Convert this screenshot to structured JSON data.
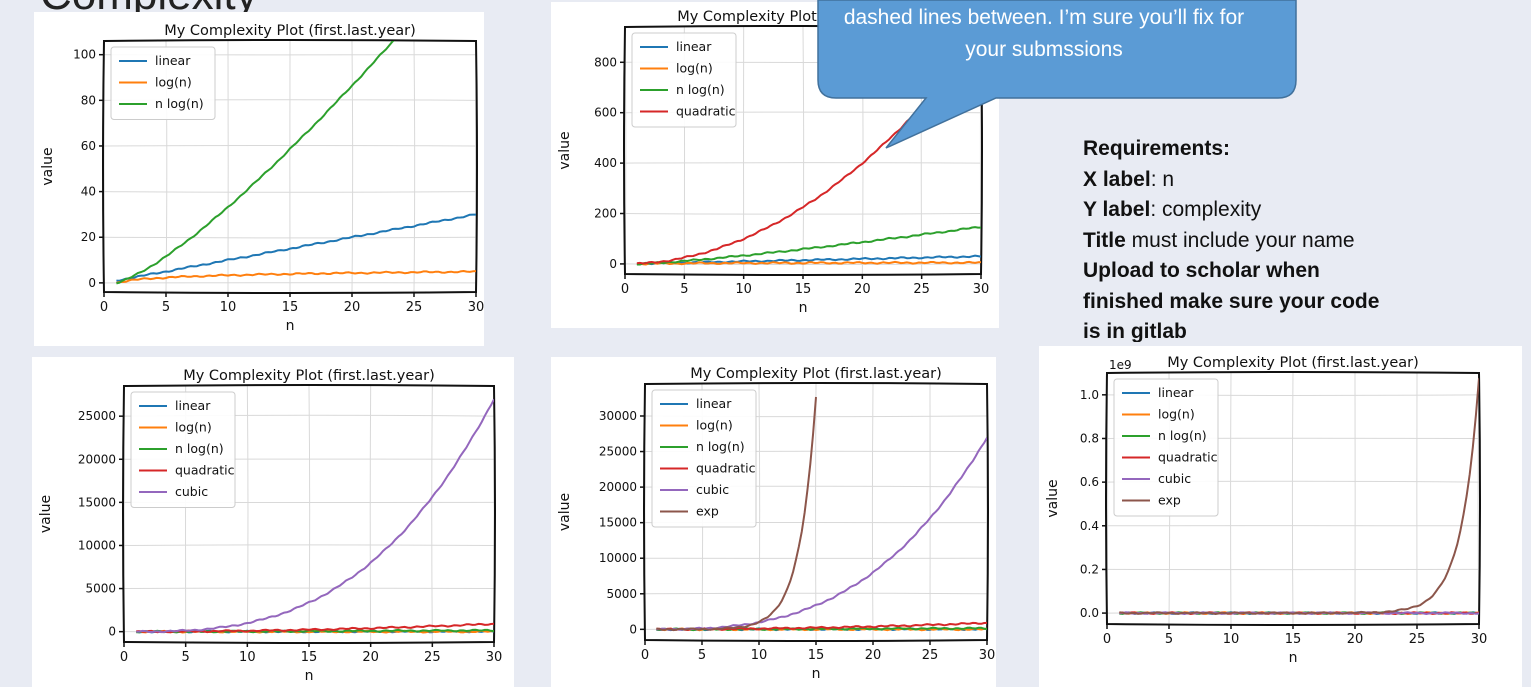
{
  "slide": {
    "title": "Complexity",
    "callout_text": "dashed lines between.  I’m sure you’ll fix for your submssions"
  },
  "requirements": {
    "heading": "Requirements:",
    "items": [
      {
        "label": "X label",
        "sep": ": ",
        "value": "n"
      },
      {
        "label": "Y label",
        "sep": ": ",
        "value": "complexity"
      },
      {
        "label": "Title",
        "sep": " ",
        "value": "must include your name"
      }
    ],
    "upload_lines": [
      "Upload to scholar when",
      "finished make sure your code",
      "is in gitlab"
    ]
  },
  "colors": {
    "linear": "#1f77b4",
    "log(n)": "#ff7f0e",
    "n log(n)": "#2ca02c",
    "quadratic": "#d62728",
    "cubic": "#9467bd",
    "exp": "#8c564b"
  },
  "chart_data": [
    {
      "type": "line",
      "title": "My Complexity Plot (first.last.year)",
      "xlabel": "n",
      "ylabel": "value",
      "xlim": [
        0,
        30
      ],
      "ylim": [
        -4,
        106
      ],
      "xticks": [
        0,
        5,
        10,
        15,
        20,
        25,
        30
      ],
      "yticks": [
        0,
        20,
        40,
        60,
        80,
        100
      ],
      "grid": true,
      "legend": "upper-left",
      "multiplier": "",
      "series": [
        {
          "name": "linear",
          "fn": "linear"
        },
        {
          "name": "log(n)",
          "fn": "log"
        },
        {
          "name": "n log(n)",
          "fn": "nlogn"
        }
      ]
    },
    {
      "type": "line",
      "title": "My Complexity Plot (first.last.year)",
      "xlabel": "n",
      "ylabel": "value",
      "xlim": [
        0,
        30
      ],
      "ylim": [
        -40,
        940
      ],
      "xticks": [
        0,
        5,
        10,
        15,
        20,
        25,
        30
      ],
      "yticks": [
        0,
        200,
        400,
        600,
        800
      ],
      "grid": true,
      "legend": "upper-left",
      "multiplier": "",
      "series": [
        {
          "name": "linear",
          "fn": "linear"
        },
        {
          "name": "log(n)",
          "fn": "log"
        },
        {
          "name": "n log(n)",
          "fn": "nlogn"
        },
        {
          "name": "quadratic",
          "fn": "quadratic"
        }
      ]
    },
    {
      "type": "line",
      "title": "My Complexity Plot (first.last.year)",
      "xlabel": "n",
      "ylabel": "value",
      "xlim": [
        0,
        30
      ],
      "ylim": [
        -1200,
        28500
      ],
      "xticks": [
        0,
        5,
        10,
        15,
        20,
        25,
        30
      ],
      "yticks": [
        0,
        5000,
        10000,
        15000,
        20000,
        25000
      ],
      "grid": true,
      "legend": "upper-left",
      "multiplier": "",
      "series": [
        {
          "name": "linear",
          "fn": "linear"
        },
        {
          "name": "log(n)",
          "fn": "log"
        },
        {
          "name": "n log(n)",
          "fn": "nlogn"
        },
        {
          "name": "quadratic",
          "fn": "quadratic"
        },
        {
          "name": "cubic",
          "fn": "cubic"
        }
      ]
    },
    {
      "type": "line",
      "title": "My Complexity Plot (first.last.year)",
      "xlabel": "n",
      "ylabel": "value",
      "xlim": [
        0,
        30
      ],
      "ylim": [
        -1500,
        34500
      ],
      "xticks": [
        0,
        5,
        10,
        15,
        20,
        25,
        30
      ],
      "yticks": [
        0,
        5000,
        10000,
        15000,
        20000,
        25000,
        30000
      ],
      "grid": true,
      "legend": "upper-left",
      "multiplier": "",
      "series": [
        {
          "name": "linear",
          "fn": "linear"
        },
        {
          "name": "log(n)",
          "fn": "log"
        },
        {
          "name": "n log(n)",
          "fn": "nlogn"
        },
        {
          "name": "quadratic",
          "fn": "quadratic"
        },
        {
          "name": "cubic",
          "fn": "cubic"
        },
        {
          "name": "exp",
          "fn": "exp",
          "xmax": 15
        }
      ]
    },
    {
      "type": "line",
      "title": "My Complexity Plot (first.last.year)",
      "xlabel": "n",
      "ylabel": "value",
      "xlim": [
        0,
        30
      ],
      "ylim": [
        -0.05,
        1.1
      ],
      "xticks": [
        0,
        5,
        10,
        15,
        20,
        25,
        30
      ],
      "yticks": [
        0,
        0.2,
        0.4,
        0.6,
        0.8,
        1.0
      ],
      "ytick_labels": [
        "0.0",
        "0.2",
        "0.4",
        "0.6",
        "0.8",
        "1.0"
      ],
      "grid": true,
      "legend": "upper-left",
      "multiplier": "1e9",
      "series": [
        {
          "name": "linear",
          "fn": "linear"
        },
        {
          "name": "log(n)",
          "fn": "log"
        },
        {
          "name": "n log(n)",
          "fn": "nlogn"
        },
        {
          "name": "quadratic",
          "fn": "quadratic"
        },
        {
          "name": "cubic",
          "fn": "cubic"
        },
        {
          "name": "exp",
          "fn": "exp"
        }
      ]
    }
  ]
}
